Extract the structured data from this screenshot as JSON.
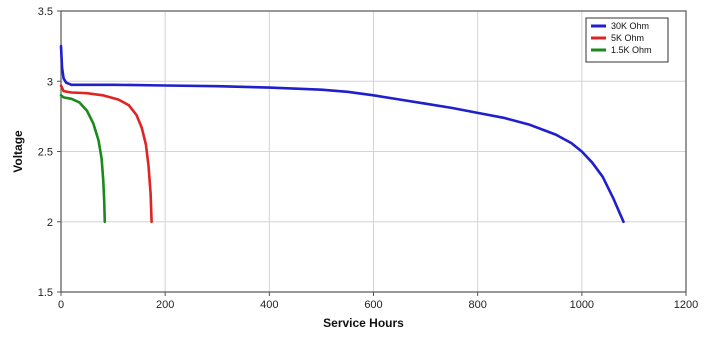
{
  "chart_data": {
    "type": "line",
    "title": "",
    "xlabel": "Service Hours",
    "ylabel": "Voltage",
    "xlim": [
      0,
      1200
    ],
    "ylim": [
      1.5,
      3.5
    ],
    "x_ticks": [
      0,
      200,
      400,
      600,
      800,
      1000,
      1200
    ],
    "y_ticks": [
      1.5,
      2,
      2.5,
      3,
      3.5
    ],
    "x_tick_labels": [
      "0",
      "200",
      "400",
      "600",
      "800",
      "1000",
      "1200"
    ],
    "y_tick_labels": [
      "1.5",
      "2",
      "2.5",
      "3",
      "3.5"
    ],
    "grid": true,
    "legend_position": "top-right",
    "series": [
      {
        "name": "30K Ohm",
        "color": "#1f1fcc",
        "points": [
          [
            0,
            3.25
          ],
          [
            2,
            3.1
          ],
          [
            5,
            3.02
          ],
          [
            10,
            2.99
          ],
          [
            20,
            2.975
          ],
          [
            50,
            2.975
          ],
          [
            100,
            2.975
          ],
          [
            200,
            2.97
          ],
          [
            300,
            2.965
          ],
          [
            400,
            2.955
          ],
          [
            500,
            2.94
          ],
          [
            550,
            2.925
          ],
          [
            600,
            2.9
          ],
          [
            650,
            2.87
          ],
          [
            700,
            2.84
          ],
          [
            750,
            2.81
          ],
          [
            800,
            2.775
          ],
          [
            850,
            2.74
          ],
          [
            900,
            2.69
          ],
          [
            950,
            2.62
          ],
          [
            980,
            2.56
          ],
          [
            1000,
            2.5
          ],
          [
            1020,
            2.42
          ],
          [
            1040,
            2.32
          ],
          [
            1060,
            2.17
          ],
          [
            1080,
            2.0
          ]
        ]
      },
      {
        "name": "5K Ohm",
        "color": "#e02424",
        "points": [
          [
            0,
            2.97
          ],
          [
            5,
            2.93
          ],
          [
            20,
            2.92
          ],
          [
            50,
            2.915
          ],
          [
            80,
            2.9
          ],
          [
            110,
            2.87
          ],
          [
            130,
            2.83
          ],
          [
            145,
            2.76
          ],
          [
            155,
            2.67
          ],
          [
            163,
            2.55
          ],
          [
            168,
            2.4
          ],
          [
            172,
            2.2
          ],
          [
            174,
            2.0
          ]
        ]
      },
      {
        "name": "1.5K Ohm",
        "color": "#1a8a1a",
        "points": [
          [
            0,
            2.9
          ],
          [
            5,
            2.885
          ],
          [
            20,
            2.875
          ],
          [
            35,
            2.85
          ],
          [
            50,
            2.79
          ],
          [
            62,
            2.7
          ],
          [
            72,
            2.58
          ],
          [
            78,
            2.45
          ],
          [
            81,
            2.3
          ],
          [
            83,
            2.15
          ],
          [
            84,
            2.0
          ]
        ]
      }
    ]
  }
}
